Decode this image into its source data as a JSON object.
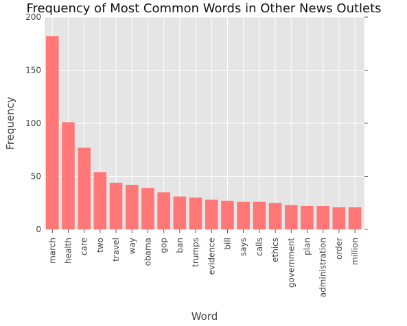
{
  "chart_data": {
    "type": "bar",
    "title": "Frequency of Most Common Words in Other News Outlets",
    "xlabel": "Word",
    "ylabel": "Frequency",
    "ylim": [
      0,
      200
    ],
    "yticks": [
      0,
      50,
      100,
      150,
      200
    ],
    "grid": true,
    "bar_color": "#ff7777",
    "background_color": "#e5e5e5",
    "categories": [
      "march",
      "health",
      "care",
      "two",
      "travel",
      "way",
      "obama",
      "gop",
      "ban",
      "trumps",
      "evidence",
      "bill",
      "says",
      "calls",
      "ethics",
      "government",
      "plan",
      "administration",
      "order",
      "million"
    ],
    "values": [
      182,
      101,
      77,
      54,
      44,
      42,
      39,
      35,
      31,
      30,
      28,
      27,
      26,
      26,
      25,
      23,
      22,
      22,
      21,
      21
    ]
  }
}
